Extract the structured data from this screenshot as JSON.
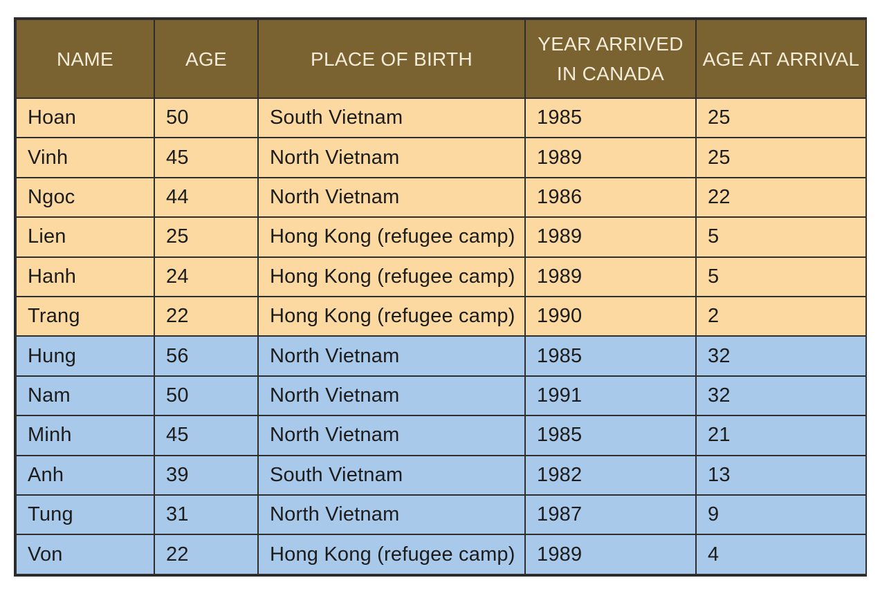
{
  "table": {
    "headers": [
      "NAME",
      "AGE",
      "PLACE OF BIRTH",
      "YEAR ARRIVED IN CANADA",
      "AGE AT ARRIVAL"
    ],
    "rows": [
      {
        "group": "a",
        "cells": [
          "Hoan",
          "50",
          "South Vietnam",
          "1985",
          "25"
        ]
      },
      {
        "group": "a",
        "cells": [
          "Vinh",
          "45",
          "North Vietnam",
          "1989",
          "25"
        ]
      },
      {
        "group": "a",
        "cells": [
          "Ngoc",
          "44",
          "North Vietnam",
          "1986",
          "22"
        ]
      },
      {
        "group": "a",
        "cells": [
          "Lien",
          "25",
          "Hong Kong (refugee camp)",
          "1989",
          "5"
        ]
      },
      {
        "group": "a",
        "cells": [
          "Hanh",
          "24",
          "Hong Kong (refugee camp)",
          "1989",
          "5"
        ]
      },
      {
        "group": "a",
        "cells": [
          "Trang",
          "22",
          "Hong Kong (refugee camp)",
          "1990",
          "2"
        ]
      },
      {
        "group": "b",
        "cells": [
          "Hung",
          "56",
          "North Vietnam",
          "1985",
          "32"
        ]
      },
      {
        "group": "b",
        "cells": [
          "Nam",
          "50",
          "North Vietnam",
          "1991",
          "32"
        ]
      },
      {
        "group": "b",
        "cells": [
          "Minh",
          "45",
          "North Vietnam",
          "1985",
          "21"
        ]
      },
      {
        "group": "b",
        "cells": [
          "Anh",
          "39",
          "South Vietnam",
          "1982",
          "13"
        ]
      },
      {
        "group": "b",
        "cells": [
          "Tung",
          "31",
          "North Vietnam",
          "1987",
          "9"
        ]
      },
      {
        "group": "b",
        "cells": [
          "Von",
          "22",
          "Hong Kong (refugee camp)",
          "1989",
          "4"
        ]
      }
    ]
  },
  "colors": {
    "header_bg": "#7a6331",
    "header_text": "#f3ecd9",
    "group_a_bg": "#fbd9a0",
    "group_b_bg": "#a9c9ea",
    "border": "#2e2e2e"
  }
}
